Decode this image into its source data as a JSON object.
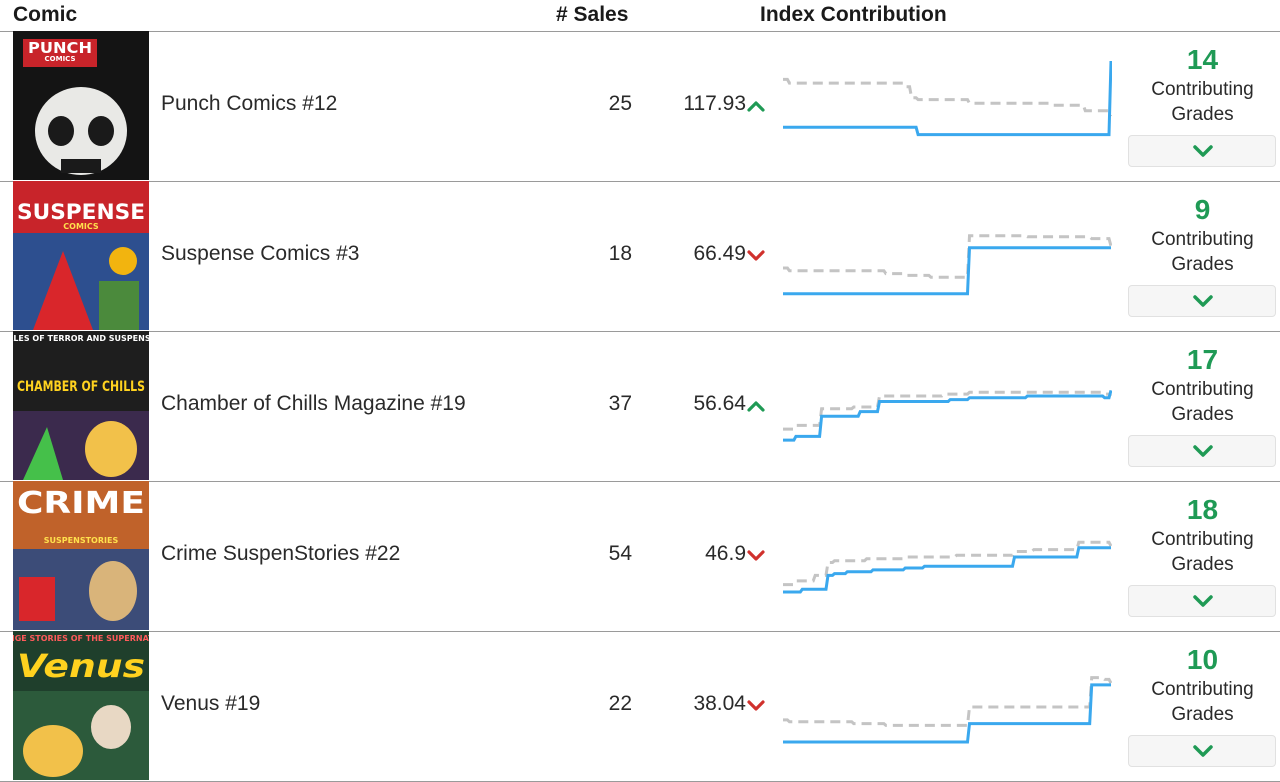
{
  "columns": {
    "comic": "Comic",
    "sales": "# Sales",
    "index": "Index Contribution"
  },
  "colors": {
    "up": "#1f9a55",
    "down": "#d0312d",
    "spark_line": "#3aa8ee",
    "spark_ref": "#c4c4c4",
    "grade_count": "#1f9a55"
  },
  "grades_label_line1": "Contributing",
  "grades_label_line2": "Grades",
  "rows": [
    {
      "title": "Punch Comics #12",
      "cover_text": "PUNCH",
      "cover_subtext": "COMICS",
      "sales": "25",
      "contribution": "117.93",
      "trend": "up",
      "grades": "14",
      "spark_line": [
        0.28,
        0.28,
        0.28,
        0.28,
        0.28,
        0.28,
        0.28,
        0.28,
        0.28,
        0.28,
        0.28,
        0.28,
        0.28,
        0.28,
        0.28,
        0.28,
        0.28,
        0.28,
        0.28,
        0.28,
        0.28,
        0.2,
        0.2,
        0.2,
        0.2,
        0.2,
        0.2,
        0.2,
        0.2,
        0.2,
        0.2,
        0.2,
        0.2,
        0.2,
        0.2,
        0.2,
        0.2,
        0.2,
        0.2,
        0.2,
        0.2,
        0.2,
        0.2,
        0.2,
        0.2,
        0.2,
        0.2,
        0.2,
        0.2,
        0.2,
        0.2,
        1.0
      ],
      "spark_ref": [
        0.8,
        0.76,
        0.76,
        0.76,
        0.76,
        0.76,
        0.76,
        0.76,
        0.76,
        0.76,
        0.76,
        0.76,
        0.76,
        0.76,
        0.76,
        0.76,
        0.76,
        0.76,
        0.76,
        0.72,
        0.6,
        0.58,
        0.58,
        0.58,
        0.58,
        0.58,
        0.58,
        0.58,
        0.58,
        0.54,
        0.54,
        0.54,
        0.54,
        0.54,
        0.54,
        0.54,
        0.54,
        0.54,
        0.54,
        0.54,
        0.54,
        0.54,
        0.52,
        0.52,
        0.52,
        0.52,
        0.52,
        0.46,
        0.46,
        0.46,
        0.46,
        0.4
      ]
    },
    {
      "title": "Suspense Comics #3",
      "cover_text": "SUSPENSE",
      "cover_subtext": "COMICS",
      "sales": "18",
      "contribution": "66.49",
      "trend": "down",
      "grades": "9",
      "spark_line": [
        0.1,
        0.1,
        0.1,
        0.1,
        0.1,
        0.1,
        0.1,
        0.1,
        0.1,
        0.1,
        0.1,
        0.1,
        0.1,
        0.1,
        0.1,
        0.1,
        0.1,
        0.1,
        0.1,
        0.1,
        0.1,
        0.1,
        0.1,
        0.1,
        0.1,
        0.1,
        0.1,
        0.1,
        0.1,
        0.6,
        0.6,
        0.6,
        0.6,
        0.6,
        0.6,
        0.6,
        0.6,
        0.6,
        0.6,
        0.6,
        0.6,
        0.6,
        0.6,
        0.6,
        0.6,
        0.6,
        0.6,
        0.6,
        0.6,
        0.6,
        0.6,
        0.6
      ],
      "spark_ref": [
        0.38,
        0.35,
        0.35,
        0.35,
        0.35,
        0.35,
        0.35,
        0.35,
        0.35,
        0.35,
        0.35,
        0.35,
        0.35,
        0.35,
        0.35,
        0.35,
        0.32,
        0.32,
        0.32,
        0.3,
        0.3,
        0.3,
        0.3,
        0.28,
        0.28,
        0.28,
        0.28,
        0.28,
        0.28,
        0.73,
        0.73,
        0.73,
        0.73,
        0.73,
        0.73,
        0.73,
        0.73,
        0.73,
        0.72,
        0.72,
        0.72,
        0.72,
        0.72,
        0.72,
        0.72,
        0.72,
        0.72,
        0.72,
        0.7,
        0.7,
        0.7,
        0.62
      ]
    },
    {
      "title": "Chamber of Chills Magazine #19",
      "cover_text": "CHAMBER OF CHILLS",
      "cover_subtext": "TALES OF TERROR AND SUSPENSE!",
      "sales": "37",
      "contribution": "56.64",
      "trend": "up",
      "grades": "17",
      "spark_line": [
        0.14,
        0.14,
        0.18,
        0.18,
        0.18,
        0.18,
        0.4,
        0.4,
        0.4,
        0.4,
        0.4,
        0.4,
        0.45,
        0.45,
        0.45,
        0.56,
        0.56,
        0.56,
        0.56,
        0.56,
        0.56,
        0.56,
        0.56,
        0.56,
        0.56,
        0.56,
        0.58,
        0.58,
        0.58,
        0.6,
        0.6,
        0.6,
        0.6,
        0.6,
        0.6,
        0.6,
        0.6,
        0.6,
        0.62,
        0.62,
        0.62,
        0.62,
        0.62,
        0.62,
        0.62,
        0.62,
        0.62,
        0.62,
        0.62,
        0.62,
        0.6,
        0.68
      ],
      "spark_ref": [
        0.26,
        0.26,
        0.3,
        0.3,
        0.3,
        0.3,
        0.48,
        0.48,
        0.48,
        0.48,
        0.48,
        0.5,
        0.5,
        0.5,
        0.5,
        0.62,
        0.62,
        0.62,
        0.62,
        0.62,
        0.62,
        0.62,
        0.62,
        0.62,
        0.62,
        0.64,
        0.64,
        0.64,
        0.64,
        0.66,
        0.66,
        0.66,
        0.66,
        0.66,
        0.66,
        0.66,
        0.66,
        0.66,
        0.66,
        0.66,
        0.66,
        0.66,
        0.66,
        0.66,
        0.66,
        0.66,
        0.66,
        0.66,
        0.66,
        0.66,
        0.64,
        0.62
      ]
    },
    {
      "title": "Crime SuspenStories #22",
      "cover_text": "CRIME",
      "cover_subtext": "SUSPENSTORIES",
      "sales": "54",
      "contribution": "46.9",
      "trend": "down",
      "grades": "18",
      "spark_line": [
        0.12,
        0.12,
        0.12,
        0.15,
        0.15,
        0.15,
        0.15,
        0.3,
        0.32,
        0.32,
        0.34,
        0.34,
        0.34,
        0.34,
        0.36,
        0.36,
        0.36,
        0.36,
        0.36,
        0.38,
        0.38,
        0.38,
        0.4,
        0.4,
        0.4,
        0.4,
        0.4,
        0.4,
        0.4,
        0.4,
        0.4,
        0.4,
        0.4,
        0.4,
        0.4,
        0.4,
        0.5,
        0.5,
        0.5,
        0.5,
        0.5,
        0.5,
        0.5,
        0.5,
        0.5,
        0.5,
        0.6,
        0.6,
        0.6,
        0.6,
        0.6,
        0.6
      ],
      "spark_ref": [
        0.2,
        0.2,
        0.24,
        0.24,
        0.24,
        0.3,
        0.3,
        0.44,
        0.46,
        0.46,
        0.46,
        0.46,
        0.46,
        0.48,
        0.48,
        0.48,
        0.48,
        0.48,
        0.48,
        0.5,
        0.5,
        0.5,
        0.5,
        0.5,
        0.5,
        0.5,
        0.5,
        0.52,
        0.52,
        0.52,
        0.52,
        0.52,
        0.52,
        0.52,
        0.52,
        0.52,
        0.56,
        0.56,
        0.56,
        0.58,
        0.58,
        0.58,
        0.58,
        0.58,
        0.58,
        0.58,
        0.66,
        0.66,
        0.66,
        0.66,
        0.66,
        0.62
      ]
    },
    {
      "title": "Venus #19",
      "cover_text": "Venus",
      "cover_subtext": "STRANGE STORIES OF THE SUPERNATURAL",
      "sales": "22",
      "contribution": "38.04",
      "trend": "down",
      "grades": "10",
      "spark_line": [
        0.12,
        0.12,
        0.12,
        0.12,
        0.12,
        0.12,
        0.12,
        0.12,
        0.12,
        0.12,
        0.12,
        0.12,
        0.12,
        0.12,
        0.12,
        0.12,
        0.12,
        0.12,
        0.12,
        0.12,
        0.12,
        0.12,
        0.12,
        0.12,
        0.12,
        0.12,
        0.12,
        0.12,
        0.12,
        0.32,
        0.32,
        0.32,
        0.32,
        0.32,
        0.32,
        0.32,
        0.32,
        0.32,
        0.32,
        0.32,
        0.32,
        0.32,
        0.32,
        0.32,
        0.32,
        0.32,
        0.32,
        0.32,
        0.74,
        0.74,
        0.74,
        0.74
      ],
      "spark_ref": [
        0.36,
        0.34,
        0.34,
        0.34,
        0.34,
        0.34,
        0.34,
        0.34,
        0.34,
        0.34,
        0.34,
        0.32,
        0.32,
        0.32,
        0.32,
        0.32,
        0.3,
        0.3,
        0.3,
        0.3,
        0.3,
        0.3,
        0.3,
        0.3,
        0.3,
        0.3,
        0.3,
        0.3,
        0.3,
        0.5,
        0.5,
        0.5,
        0.5,
        0.5,
        0.5,
        0.5,
        0.5,
        0.5,
        0.5,
        0.5,
        0.5,
        0.5,
        0.5,
        0.5,
        0.5,
        0.5,
        0.5,
        0.5,
        0.82,
        0.82,
        0.8,
        0.76
      ]
    }
  ]
}
